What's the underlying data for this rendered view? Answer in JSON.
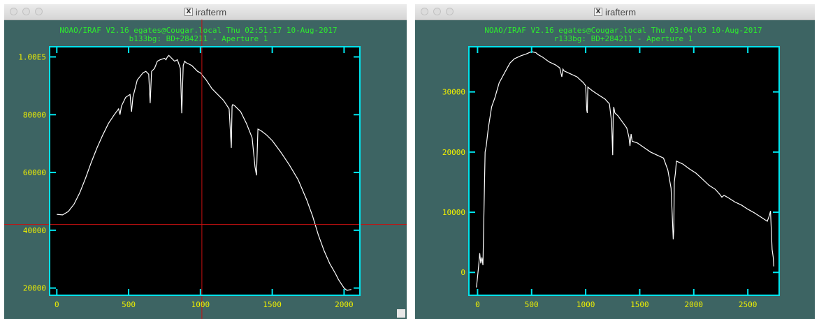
{
  "colors": {
    "background": "#3d6463",
    "frame": "#00e5ee",
    "header_text": "#2eec2e",
    "tick_labels": "#f0f000",
    "spectrum": "#ffffff",
    "crosshair": "#c81010"
  },
  "windows": [
    {
      "title": "irafterm",
      "icon": "x11-icon",
      "header_line1": "NOAO/IRAF V2.16 egates@Cougar.local Thu 02:51:17 10-Aug-2017",
      "header_line2": "b133bg: BD+284211 - Aperture 1",
      "crosshair": {
        "x": 1010,
        "y": 42000
      }
    },
    {
      "title": "irafterm",
      "icon": "x11-icon",
      "header_line1": "NOAO/IRAF V2.16 egates@Cougar.local Thu 03:04:03 10-Aug-2017",
      "header_line2": "r133bg: BD+284211 - Aperture 1"
    }
  ],
  "chart_data": [
    {
      "type": "line",
      "xlim": [
        -50,
        2110
      ],
      "ylim": [
        17500,
        103500
      ],
      "xticks": [
        0,
        500,
        1000,
        1500,
        2000
      ],
      "xtick_labels": [
        "0",
        "500",
        "1000",
        "1500",
        "2000"
      ],
      "yticks": [
        20000,
        40000,
        60000,
        80000,
        100000
      ],
      "ytick_labels": [
        "20000",
        "40000",
        "60000",
        "80000",
        "1.00E5"
      ],
      "grid": false,
      "series": [
        {
          "x": [
            0,
            40,
            80,
            120,
            160,
            200,
            240,
            280,
            320,
            360,
            400,
            430,
            440,
            450,
            480,
            510,
            520,
            530,
            560,
            600,
            620,
            640,
            650,
            660,
            680,
            700,
            720,
            750,
            760,
            770,
            780,
            790,
            800,
            820,
            840,
            860,
            870,
            880,
            890,
            900,
            940,
            980,
            1000,
            1040,
            1080,
            1120,
            1160,
            1200,
            1215,
            1220,
            1225,
            1240,
            1280,
            1320,
            1360,
            1380,
            1390,
            1400,
            1420,
            1460,
            1500,
            1560,
            1620,
            1680,
            1740,
            1780,
            1820,
            1860,
            1900,
            1940,
            1960,
            2000,
            2020,
            2050
          ],
          "y": [
            45500,
            45300,
            46500,
            49000,
            53000,
            58000,
            63500,
            68500,
            73000,
            77000,
            80000,
            82000,
            80000,
            83000,
            86000,
            87000,
            81000,
            86000,
            92000,
            94500,
            95000,
            94000,
            84000,
            95000,
            96000,
            98500,
            99000,
            99500,
            99000,
            100000,
            100500,
            100000,
            99500,
            98500,
            99000,
            96000,
            80500,
            97000,
            98500,
            98000,
            97000,
            95000,
            94500,
            92000,
            89000,
            87000,
            85000,
            82000,
            68500,
            83000,
            83500,
            83000,
            81000,
            77000,
            72000,
            62000,
            59000,
            75000,
            74500,
            73000,
            71000,
            67000,
            62500,
            57500,
            50500,
            45000,
            38500,
            33000,
            28500,
            25000,
            23000,
            20000,
            19200,
            19500
          ]
        }
      ]
    },
    {
      "type": "line",
      "xlim": [
        -80,
        2790
      ],
      "ylim": [
        -3800,
        37500
      ],
      "xticks": [
        0,
        500,
        1000,
        1500,
        2000,
        2500
      ],
      "xtick_labels": [
        "0",
        "500",
        "1000",
        "1500",
        "2000",
        "2500"
      ],
      "yticks": [
        0,
        10000,
        20000,
        30000
      ],
      "ytick_labels": [
        "0",
        "10000",
        "20000",
        "30000"
      ],
      "grid": false,
      "series": [
        {
          "x": [
            -10,
            10,
            20,
            30,
            40,
            50,
            60,
            70,
            80,
            100,
            130,
            160,
            200,
            260,
            300,
            340,
            400,
            450,
            500,
            540,
            560,
            600,
            660,
            720,
            760,
            780,
            790,
            800,
            860,
            920,
            980,
            1000,
            1010,
            1015,
            1020,
            1060,
            1120,
            1180,
            1220,
            1240,
            1250,
            1255,
            1260,
            1270,
            1300,
            1340,
            1380,
            1400,
            1410,
            1420,
            1430,
            1480,
            1520,
            1560,
            1600,
            1660,
            1720,
            1760,
            1790,
            1800,
            1810,
            1815,
            1820,
            1830,
            1840,
            1900,
            1960,
            2020,
            2080,
            2140,
            2200,
            2240,
            2260,
            2280,
            2320,
            2380,
            2440,
            2500,
            2560,
            2620,
            2680,
            2700,
            2710,
            2715,
            2725,
            2735,
            2740
          ],
          "y": [
            -2500,
            1000,
            3200,
            1500,
            2500,
            1200,
            11000,
            20000,
            21000,
            24000,
            27500,
            29000,
            31500,
            33500,
            34800,
            35500,
            36000,
            36300,
            36700,
            36500,
            36200,
            35800,
            35000,
            34500,
            34000,
            32500,
            33800,
            33500,
            33000,
            32500,
            31500,
            31000,
            27000,
            26500,
            30800,
            30200,
            29500,
            28800,
            28000,
            25000,
            19500,
            26000,
            27500,
            26500,
            26000,
            25000,
            24000,
            22500,
            21000,
            23000,
            21800,
            21500,
            21000,
            20500,
            20000,
            19500,
            19000,
            17000,
            14000,
            10000,
            5500,
            7000,
            15000,
            16500,
            18500,
            18000,
            17200,
            16500,
            15500,
            14500,
            13800,
            13000,
            12500,
            12800,
            12400,
            11700,
            11200,
            10500,
            9900,
            9200,
            8500,
            9500,
            10200,
            8000,
            3800,
            2500,
            1000
          ]
        }
      ]
    }
  ]
}
